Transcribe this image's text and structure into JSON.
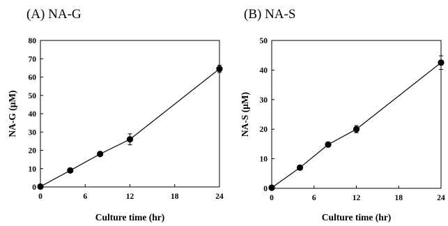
{
  "chart_data": [
    {
      "type": "line",
      "title": "(A) NA-G",
      "xlabel": "Culture time (hr)",
      "ylabel": "NA-G (μM)",
      "xlim": [
        0,
        24
      ],
      "ylim": [
        0,
        80
      ],
      "xticks": [
        0,
        6,
        12,
        18,
        24
      ],
      "yticks": [
        0,
        10,
        20,
        30,
        40,
        50,
        60,
        70,
        80
      ],
      "grid": false,
      "series": [
        {
          "x": [
            0,
            4,
            8,
            12,
            24
          ],
          "y": [
            0.2,
            9,
            18,
            26,
            64.5
          ],
          "err": [
            0,
            1.2,
            1,
            3,
            2
          ]
        }
      ]
    },
    {
      "type": "line",
      "title": "(B) NA-S",
      "xlabel": "Culture time (hr)",
      "ylabel": "NA-S (μM)",
      "xlim": [
        0,
        24
      ],
      "ylim": [
        0,
        50
      ],
      "xticks": [
        0,
        6,
        12,
        18,
        24
      ],
      "yticks": [
        0,
        10,
        20,
        30,
        40,
        50
      ],
      "grid": false,
      "series": [
        {
          "x": [
            0,
            4,
            8,
            12,
            24
          ],
          "y": [
            0.2,
            7,
            14.8,
            20,
            42.5
          ],
          "err": [
            0,
            0.5,
            0.8,
            1.2,
            2.3
          ]
        }
      ]
    }
  ]
}
